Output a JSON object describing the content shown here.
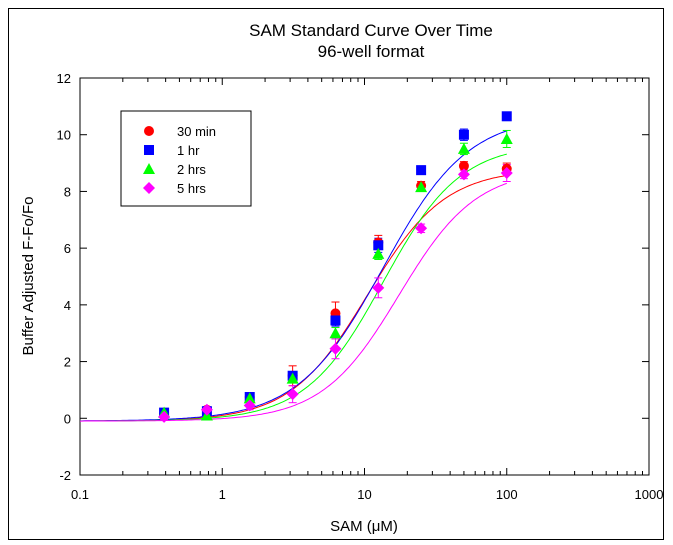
{
  "chart_data": {
    "type": "scatter",
    "title": "SAM Standard Curve Over Time",
    "subtitle": "96-well format",
    "xlabel": "SAM (μM)",
    "ylabel": "Buffer Adjusted F-Fo/Fo",
    "xscale": "log",
    "xlim": [
      0.1,
      1000
    ],
    "ylim": [
      -2,
      12
    ],
    "x_ticks": [
      0.1,
      1,
      10,
      100,
      1000
    ],
    "x_tick_labels": [
      "0.1",
      "1",
      "10",
      "100",
      "1000"
    ],
    "y_ticks": [
      -2,
      0,
      2,
      4,
      6,
      8,
      10,
      12
    ],
    "y_tick_labels": [
      "-2",
      "0",
      "2",
      "4",
      "6",
      "8",
      "10",
      "12"
    ],
    "grid": false,
    "legend_position": "top-left",
    "fit_curves": true,
    "series": [
      {
        "name": "30 min",
        "color": "#ff0000",
        "marker": "circle",
        "x": [
          0.39,
          0.78,
          1.56,
          3.125,
          6.25,
          12.5,
          25,
          50,
          100
        ],
        "y": [
          0.15,
          0.3,
          0.75,
          1.5,
          3.7,
          6.2,
          8.2,
          8.9,
          8.8
        ],
        "err": [
          0.1,
          0.1,
          0.1,
          0.35,
          0.4,
          0.25,
          0.15,
          0.15,
          0.2
        ],
        "fit": {
          "bottom": -0.1,
          "top": 8.8,
          "ec50": 10.5,
          "hill": 1.6
        }
      },
      {
        "name": "1 hr",
        "color": "#0000ff",
        "marker": "square",
        "x": [
          0.39,
          0.78,
          1.56,
          3.125,
          6.25,
          12.5,
          25,
          50,
          100
        ],
        "y": [
          0.2,
          0.25,
          0.75,
          1.5,
          3.45,
          6.1,
          8.75,
          10.0,
          10.65
        ],
        "err": [
          0.1,
          0.1,
          0.1,
          0.15,
          0.2,
          0.25,
          0.15,
          0.2,
          0.15
        ],
        "fit": {
          "bottom": -0.1,
          "top": 10.7,
          "ec50": 13.5,
          "hill": 1.45
        }
      },
      {
        "name": "2 hrs",
        "color": "#00ff00",
        "marker": "triangle",
        "x": [
          0.39,
          0.78,
          1.56,
          3.125,
          6.25,
          12.5,
          25,
          50,
          100
        ],
        "y": [
          0.2,
          0.1,
          0.7,
          1.4,
          3.0,
          5.8,
          8.15,
          9.5,
          9.85
        ],
        "err": [
          0.1,
          0.1,
          0.1,
          0.15,
          0.2,
          0.2,
          0.15,
          0.2,
          0.3
        ],
        "fit": {
          "bottom": -0.1,
          "top": 9.7,
          "ec50": 13.5,
          "hill": 1.6
        }
      },
      {
        "name": "5 hrs",
        "color": "#ff00ff",
        "marker": "diamond",
        "x": [
          0.39,
          0.78,
          1.56,
          3.125,
          6.25,
          12.5,
          25,
          50,
          100
        ],
        "y": [
          0.05,
          0.3,
          0.45,
          0.85,
          2.45,
          4.6,
          6.7,
          8.6,
          8.65
        ],
        "err": [
          0.1,
          0.1,
          0.15,
          0.3,
          0.35,
          0.35,
          0.15,
          0.15,
          0.3
        ],
        "fit": {
          "bottom": -0.1,
          "top": 8.8,
          "ec50": 17.5,
          "hill": 1.6
        }
      }
    ]
  }
}
